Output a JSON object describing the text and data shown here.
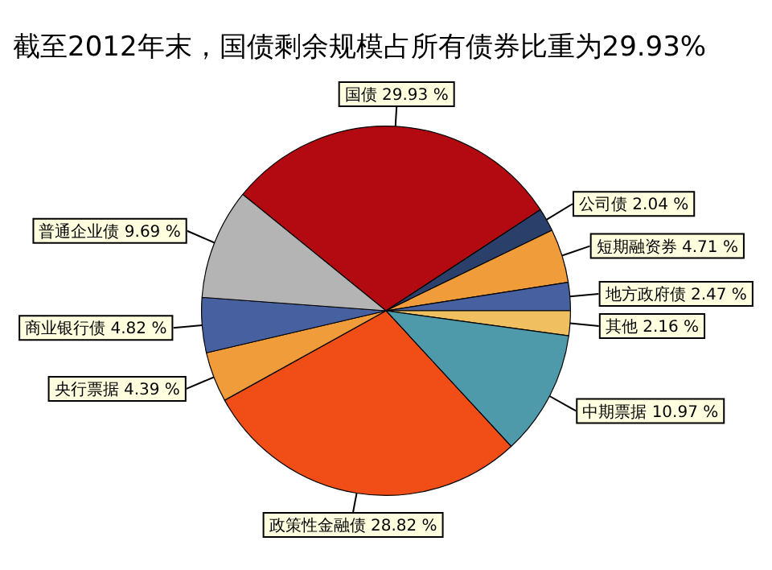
{
  "chart_data": {
    "type": "pie",
    "title": "截至2012年末，国债剩余规模占所有债券比重为29.93%",
    "categories": [
      "国债",
      "公司债",
      "短期融资券",
      "地方政府债",
      "其他",
      "中期票据",
      "政策性金融债",
      "央行票据",
      "商业银行债",
      "普通企业债"
    ],
    "values": [
      29.93,
      2.04,
      4.71,
      2.47,
      2.16,
      10.97,
      28.82,
      4.39,
      4.82,
      9.69
    ],
    "value_labels": [
      "29.93 %",
      "2.04 %",
      "4.71 %",
      "2.47 %",
      "2.16 %",
      "10.97 %",
      "28.82 %",
      "4.39 %",
      "4.82 %",
      "9.69 %"
    ],
    "colors": [
      "#b20a10",
      "#2b3f6b",
      "#f09c3a",
      "#4660a0",
      "#f0c060",
      "#4e9aab",
      "#f04e16",
      "#f09c3a",
      "#4660a0",
      "#b4b4b4"
    ],
    "legend": false
  }
}
